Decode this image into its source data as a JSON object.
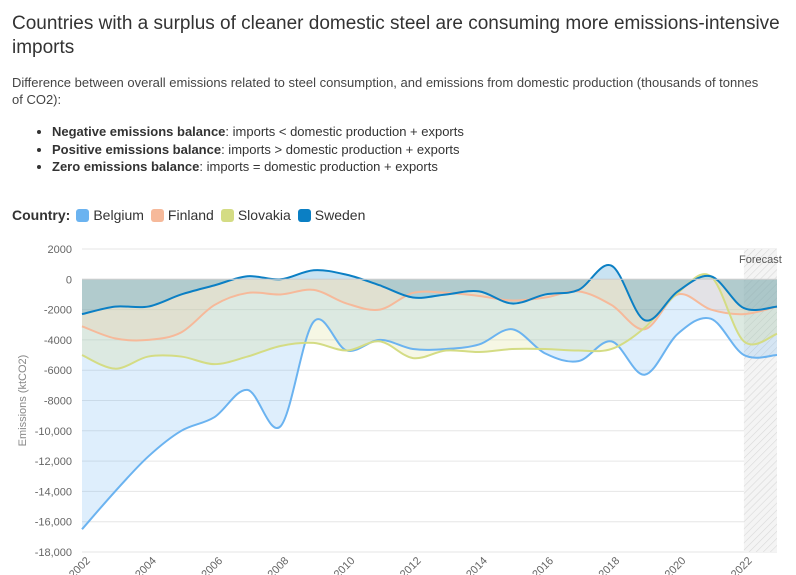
{
  "title": "Countries with a surplus of cleaner domestic steel are consuming more emissions-intensive imports",
  "subtitle": "Difference between overall emissions related to steel consumption, and emissions from domestic production (thousands of tonnes of CO2):",
  "bullets": [
    {
      "term": "Negative emissions balance",
      "desc": ": imports < domestic production + exports"
    },
    {
      "term": "Positive emissions balance",
      "desc": ": imports > domestic production + exports"
    },
    {
      "term": "Zero emissions balance",
      "desc": ": imports = domestic production + exports"
    }
  ],
  "legend": {
    "title": "Country:",
    "items": [
      {
        "name": "Belgium",
        "color": "#6bb3f0"
      },
      {
        "name": "Finland",
        "color": "#f6b99a"
      },
      {
        "name": "Slovakia",
        "color": "#d4dc84"
      },
      {
        "name": "Sweden",
        "color": "#0b7fc4"
      }
    ]
  },
  "chart_data": {
    "type": "area",
    "ylabel": "Emissions (ktCO2)",
    "ylim": [
      -18000,
      2000
    ],
    "yticks": [
      2000,
      0,
      -2000,
      -4000,
      -6000,
      -8000,
      -10000,
      -12000,
      -14000,
      -16000,
      -18000
    ],
    "ytick_labels": [
      "2000",
      "0",
      "-2000",
      "-4000",
      "-6000",
      "-8000",
      "-10,000",
      "-12,000",
      "-14,000",
      "-16,000",
      "-18,000"
    ],
    "x": [
      2002,
      2003,
      2004,
      2005,
      2006,
      2007,
      2008,
      2009,
      2010,
      2011,
      2012,
      2013,
      2014,
      2015,
      2016,
      2017,
      2018,
      2019,
      2020,
      2021,
      2022,
      2023
    ],
    "xticks": [
      2002,
      2004,
      2006,
      2008,
      2010,
      2012,
      2014,
      2016,
      2018,
      2020,
      2022
    ],
    "forecast_from": 2022,
    "forecast_label": "Forecast",
    "grid": true,
    "series": [
      {
        "name": "Belgium",
        "color": "#6bb3f0",
        "values": [
          -16500,
          -14000,
          -11700,
          -10000,
          -9100,
          -7300,
          -9700,
          -2800,
          -4700,
          -4000,
          -4600,
          -4600,
          -4300,
          -3300,
          -4900,
          -5400,
          -4100,
          -6300,
          -3600,
          -2600,
          -5000,
          -5000
        ]
      },
      {
        "name": "Finland",
        "color": "#f6b99a",
        "values": [
          -3100,
          -3900,
          -4000,
          -3500,
          -1700,
          -900,
          -1000,
          -700,
          -1600,
          -2000,
          -900,
          -900,
          -1100,
          -1400,
          -1200,
          -800,
          -1700,
          -3300,
          -1000,
          -2000,
          -2300,
          -1800
        ]
      },
      {
        "name": "Slovakia",
        "color": "#d4dc84",
        "values": [
          -5000,
          -5900,
          -5100,
          -5100,
          -5600,
          -5100,
          -4400,
          -4200,
          -4700,
          -4100,
          -5200,
          -4700,
          -4800,
          -4600,
          -4600,
          -4700,
          -4600,
          -3200,
          -900,
          200,
          -4100,
          -3600
        ]
      },
      {
        "name": "Sweden",
        "color": "#0b7fc4",
        "values": [
          -2300,
          -1800,
          -1800,
          -1000,
          -400,
          200,
          0,
          600,
          300,
          -400,
          -1200,
          -1000,
          -800,
          -1600,
          -1000,
          -700,
          900,
          -2700,
          -800,
          200,
          -1900,
          -1800
        ]
      }
    ]
  }
}
